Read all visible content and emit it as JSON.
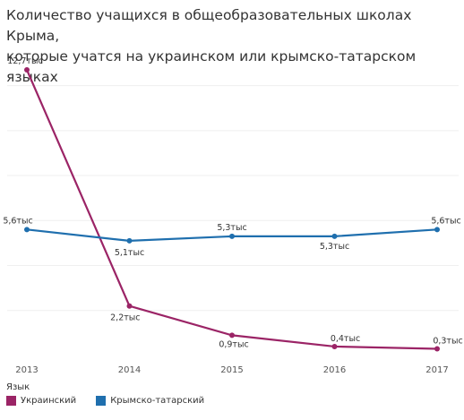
{
  "title_lines": [
    "Количество учащихся в общеобразовательных школах Крыма,",
    "которые учатся на украинском или крымско-татарском языках"
  ],
  "chart_data": {
    "type": "line",
    "x": [
      "2013",
      "2014",
      "2015",
      "2016",
      "2017"
    ],
    "unit": "тыс",
    "ylim": [
      0,
      13
    ],
    "grid": true,
    "legend_position": "bottom-left",
    "series": [
      {
        "name": "Украинский",
        "color": "#9b2466",
        "values": [
          12.7,
          2.2,
          0.9,
          0.4,
          0.3
        ],
        "labels": [
          "12,7тыс",
          "2,2тыс",
          "0,9тыс",
          "0,4тыс",
          "0,3тыс"
        ]
      },
      {
        "name": "Крымско-татарский",
        "color": "#1f6fae",
        "values": [
          5.6,
          5.1,
          5.3,
          5.3,
          5.6
        ],
        "labels": [
          "5,6тыс",
          "5,1тыс",
          "5,3тыс",
          "5,3тыс",
          "5,6тыс"
        ]
      }
    ]
  },
  "legend": {
    "title": "Язык",
    "items": [
      {
        "label": "Украинский",
        "color": "#9b2466"
      },
      {
        "label": "Крымско-татарский",
        "color": "#1f6fae"
      }
    ]
  }
}
